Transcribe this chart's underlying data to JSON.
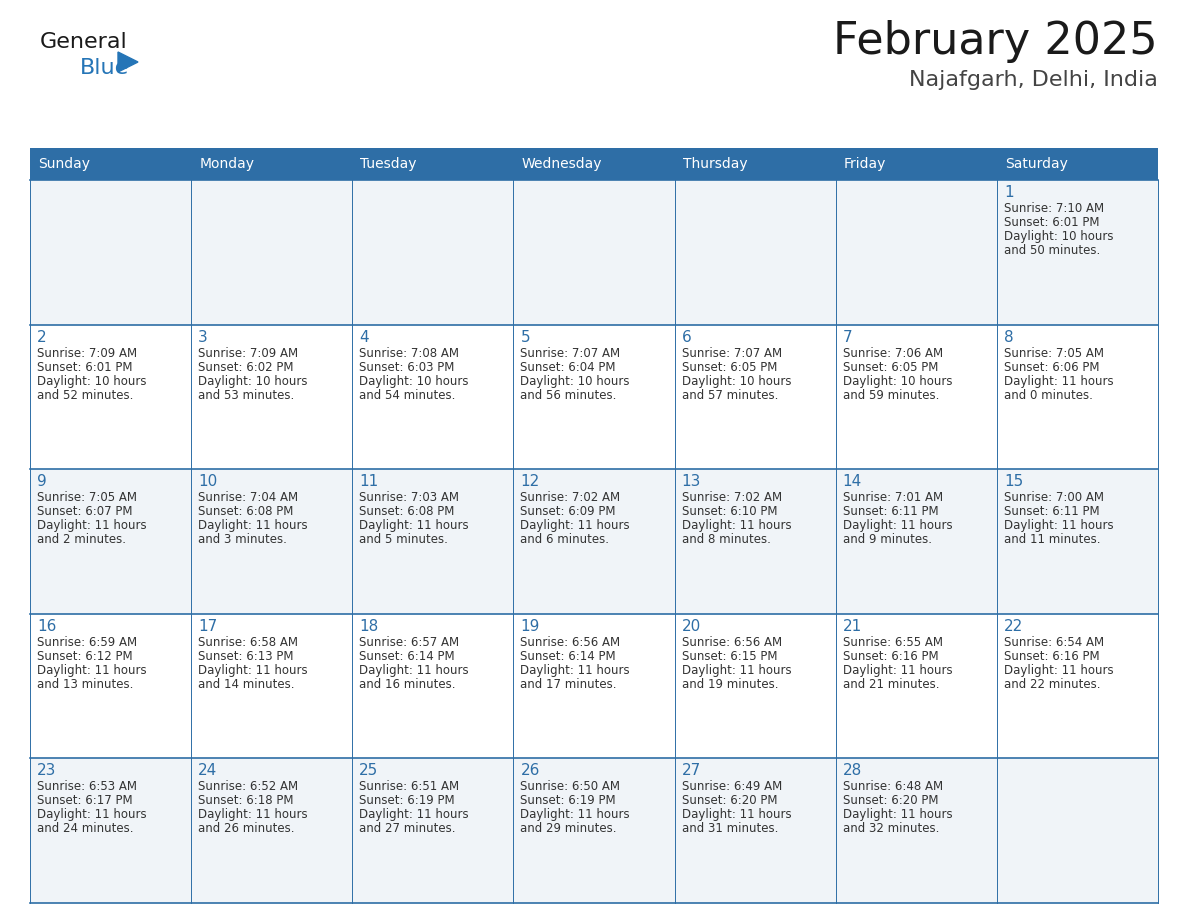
{
  "title": "February 2025",
  "subtitle": "Najafgarh, Delhi, India",
  "header_bg": "#2E6EA6",
  "header_text": "#FFFFFF",
  "cell_bg_odd": "#F0F4F8",
  "cell_bg_even": "#FFFFFF",
  "border_color": "#2E6EA6",
  "title_color": "#1a1a1a",
  "subtitle_color": "#444444",
  "day_num_color": "#2E6EA6",
  "info_color": "#333333",
  "day_names": [
    "Sunday",
    "Monday",
    "Tuesday",
    "Wednesday",
    "Thursday",
    "Friday",
    "Saturday"
  ],
  "logo_text1": "General",
  "logo_text2": "Blue",
  "logo_color1": "#1a1a1a",
  "logo_color2": "#2575B7",
  "calendar": [
    [
      null,
      null,
      null,
      null,
      null,
      null,
      {
        "day": "1",
        "sunrise": "7:10 AM",
        "sunset": "6:01 PM",
        "daylight1": "10 hours",
        "daylight2": "and 50 minutes."
      }
    ],
    [
      {
        "day": "2",
        "sunrise": "7:09 AM",
        "sunset": "6:01 PM",
        "daylight1": "10 hours",
        "daylight2": "and 52 minutes."
      },
      {
        "day": "3",
        "sunrise": "7:09 AM",
        "sunset": "6:02 PM",
        "daylight1": "10 hours",
        "daylight2": "and 53 minutes."
      },
      {
        "day": "4",
        "sunrise": "7:08 AM",
        "sunset": "6:03 PM",
        "daylight1": "10 hours",
        "daylight2": "and 54 minutes."
      },
      {
        "day": "5",
        "sunrise": "7:07 AM",
        "sunset": "6:04 PM",
        "daylight1": "10 hours",
        "daylight2": "and 56 minutes."
      },
      {
        "day": "6",
        "sunrise": "7:07 AM",
        "sunset": "6:05 PM",
        "daylight1": "10 hours",
        "daylight2": "and 57 minutes."
      },
      {
        "day": "7",
        "sunrise": "7:06 AM",
        "sunset": "6:05 PM",
        "daylight1": "10 hours",
        "daylight2": "and 59 minutes."
      },
      {
        "day": "8",
        "sunrise": "7:05 AM",
        "sunset": "6:06 PM",
        "daylight1": "11 hours",
        "daylight2": "and 0 minutes."
      }
    ],
    [
      {
        "day": "9",
        "sunrise": "7:05 AM",
        "sunset": "6:07 PM",
        "daylight1": "11 hours",
        "daylight2": "and 2 minutes."
      },
      {
        "day": "10",
        "sunrise": "7:04 AM",
        "sunset": "6:08 PM",
        "daylight1": "11 hours",
        "daylight2": "and 3 minutes."
      },
      {
        "day": "11",
        "sunrise": "7:03 AM",
        "sunset": "6:08 PM",
        "daylight1": "11 hours",
        "daylight2": "and 5 minutes."
      },
      {
        "day": "12",
        "sunrise": "7:02 AM",
        "sunset": "6:09 PM",
        "daylight1": "11 hours",
        "daylight2": "and 6 minutes."
      },
      {
        "day": "13",
        "sunrise": "7:02 AM",
        "sunset": "6:10 PM",
        "daylight1": "11 hours",
        "daylight2": "and 8 minutes."
      },
      {
        "day": "14",
        "sunrise": "7:01 AM",
        "sunset": "6:11 PM",
        "daylight1": "11 hours",
        "daylight2": "and 9 minutes."
      },
      {
        "day": "15",
        "sunrise": "7:00 AM",
        "sunset": "6:11 PM",
        "daylight1": "11 hours",
        "daylight2": "and 11 minutes."
      }
    ],
    [
      {
        "day": "16",
        "sunrise": "6:59 AM",
        "sunset": "6:12 PM",
        "daylight1": "11 hours",
        "daylight2": "and 13 minutes."
      },
      {
        "day": "17",
        "sunrise": "6:58 AM",
        "sunset": "6:13 PM",
        "daylight1": "11 hours",
        "daylight2": "and 14 minutes."
      },
      {
        "day": "18",
        "sunrise": "6:57 AM",
        "sunset": "6:14 PM",
        "daylight1": "11 hours",
        "daylight2": "and 16 minutes."
      },
      {
        "day": "19",
        "sunrise": "6:56 AM",
        "sunset": "6:14 PM",
        "daylight1": "11 hours",
        "daylight2": "and 17 minutes."
      },
      {
        "day": "20",
        "sunrise": "6:56 AM",
        "sunset": "6:15 PM",
        "daylight1": "11 hours",
        "daylight2": "and 19 minutes."
      },
      {
        "day": "21",
        "sunrise": "6:55 AM",
        "sunset": "6:16 PM",
        "daylight1": "11 hours",
        "daylight2": "and 21 minutes."
      },
      {
        "day": "22",
        "sunrise": "6:54 AM",
        "sunset": "6:16 PM",
        "daylight1": "11 hours",
        "daylight2": "and 22 minutes."
      }
    ],
    [
      {
        "day": "23",
        "sunrise": "6:53 AM",
        "sunset": "6:17 PM",
        "daylight1": "11 hours",
        "daylight2": "and 24 minutes."
      },
      {
        "day": "24",
        "sunrise": "6:52 AM",
        "sunset": "6:18 PM",
        "daylight1": "11 hours",
        "daylight2": "and 26 minutes."
      },
      {
        "day": "25",
        "sunrise": "6:51 AM",
        "sunset": "6:19 PM",
        "daylight1": "11 hours",
        "daylight2": "and 27 minutes."
      },
      {
        "day": "26",
        "sunrise": "6:50 AM",
        "sunset": "6:19 PM",
        "daylight1": "11 hours",
        "daylight2": "and 29 minutes."
      },
      {
        "day": "27",
        "sunrise": "6:49 AM",
        "sunset": "6:20 PM",
        "daylight1": "11 hours",
        "daylight2": "and 31 minutes."
      },
      {
        "day": "28",
        "sunrise": "6:48 AM",
        "sunset": "6:20 PM",
        "daylight1": "11 hours",
        "daylight2": "and 32 minutes."
      },
      null
    ]
  ]
}
